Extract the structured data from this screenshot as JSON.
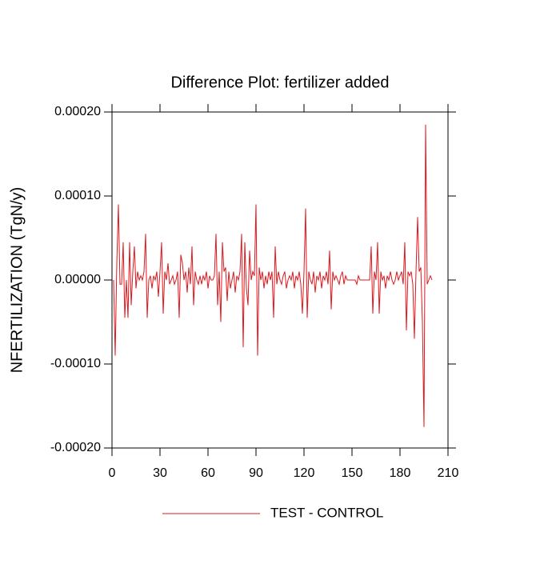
{
  "chart_data": {
    "type": "line",
    "title": "Difference Plot: fertilizer added",
    "ylabel": "NFERTILIZATION  (TgN/y)",
    "xlim": [
      0,
      210
    ],
    "xticks": [
      0,
      30,
      60,
      90,
      120,
      150,
      180,
      210
    ],
    "ylim": [
      -0.0002,
      0.0002
    ],
    "yticks": [
      {
        "value": -0.0002,
        "label": "-0.00020"
      },
      {
        "value": -0.0001,
        "label": "-0.00010"
      },
      {
        "value": 0,
        "label": "0.00000"
      },
      {
        "value": 0.0001,
        "label": "0.00010"
      },
      {
        "value": 0.0002,
        "label": "0.00020"
      }
    ],
    "legend": "bottom",
    "x": [
      1,
      2,
      3,
      4,
      5,
      6,
      7,
      8,
      9,
      10,
      11,
      12,
      13,
      14,
      15,
      16,
      17,
      18,
      19,
      20,
      21,
      22,
      23,
      24,
      25,
      26,
      27,
      28,
      29,
      30,
      31,
      32,
      33,
      34,
      35,
      36,
      37,
      38,
      39,
      40,
      41,
      42,
      43,
      44,
      45,
      46,
      47,
      48,
      49,
      50,
      51,
      52,
      53,
      54,
      55,
      56,
      57,
      58,
      59,
      60,
      61,
      62,
      63,
      64,
      65,
      66,
      67,
      68,
      69,
      70,
      71,
      72,
      73,
      74,
      75,
      76,
      77,
      78,
      79,
      80,
      81,
      82,
      83,
      84,
      85,
      86,
      87,
      88,
      89,
      90,
      91,
      92,
      93,
      94,
      95,
      96,
      97,
      98,
      99,
      100,
      101,
      102,
      103,
      104,
      105,
      106,
      107,
      108,
      109,
      110,
      111,
      112,
      113,
      114,
      115,
      116,
      117,
      118,
      119,
      120,
      121,
      122,
      123,
      124,
      125,
      126,
      127,
      128,
      129,
      130,
      131,
      132,
      133,
      134,
      135,
      136,
      137,
      138,
      139,
      140,
      141,
      142,
      143,
      144,
      145,
      146,
      147,
      148,
      149,
      150,
      151,
      152,
      153,
      154,
      155,
      156,
      157,
      158,
      159,
      160,
      161,
      162,
      163,
      164,
      165,
      166,
      167,
      168,
      169,
      170,
      171,
      172,
      173,
      174,
      175,
      176,
      177,
      178,
      179,
      180,
      181,
      182,
      183,
      184,
      185,
      186,
      187,
      188,
      189,
      190,
      191,
      192,
      193,
      194,
      195,
      196,
      197,
      198,
      199,
      200
    ],
    "series": [
      {
        "name": "TEST - CONTROL",
        "color": "#e0161b",
        "values": [
          0,
          -9e-05,
          2e-05,
          9e-05,
          -5e-06,
          -5e-06,
          4.5e-05,
          -4.5e-05,
          0,
          -4.5e-05,
          4.5e-05,
          -3e-05,
          1e-05,
          4e-05,
          -1e-05,
          1e-05,
          0,
          5e-06,
          0,
          1e-05,
          5.5e-05,
          -4.5e-05,
          0,
          5e-06,
          -1e-05,
          5e-06,
          0,
          1e-05,
          -2e-05,
          1e-05,
          4.5e-05,
          -4e-05,
          1e-05,
          0,
          2e-05,
          -5e-06,
          0,
          5e-06,
          -5e-06,
          0,
          1e-05,
          -4.5e-05,
          3e-05,
          2e-05,
          0,
          1e-05,
          -1.5e-05,
          1.5e-05,
          -5e-06,
          4e-05,
          -3e-05,
          1e-05,
          0,
          -5e-06,
          5e-06,
          -5e-06,
          5e-06,
          0,
          1e-05,
          -1e-05,
          5e-06,
          0,
          0,
          5e-06,
          5.5e-05,
          -3e-05,
          1e-05,
          -5e-05,
          4.5e-05,
          1e-05,
          1.5e-05,
          -2.5e-05,
          1e-05,
          -1e-05,
          0,
          1e-05,
          -1.5e-05,
          5e-06,
          0,
          1e-05,
          5.5e-05,
          -8e-05,
          4.5e-05,
          -1e-05,
          -3e-05,
          3.5e-05,
          0,
          1e-05,
          5e-06,
          9e-05,
          -9e-05,
          1.5e-05,
          0,
          1e-05,
          -1e-05,
          5e-06,
          -5e-06,
          1e-05,
          0,
          1e-05,
          -4.5e-05,
          4e-05,
          -5e-06,
          1e-05,
          0,
          -5e-06,
          5e-06,
          1e-05,
          -1e-05,
          0,
          5e-06,
          0,
          1e-05,
          -1e-05,
          5e-06,
          0,
          1e-05,
          -5e-06,
          -4e-05,
          1e-05,
          8.5e-05,
          -4.5e-05,
          1e-05,
          0,
          -5e-06,
          1e-05,
          -1.5e-05,
          5e-06,
          0,
          1e-05,
          -1e-05,
          5e-06,
          0,
          1e-05,
          -5e-06,
          3.5e-05,
          -3.5e-05,
          1e-05,
          0,
          5e-06,
          0,
          -5e-06,
          5e-06,
          1e-05,
          -5e-06,
          5e-06,
          0,
          0,
          0,
          0,
          0,
          0,
          -5e-06,
          5e-06,
          0,
          0,
          0,
          0,
          0,
          0,
          0,
          4e-05,
          -4e-05,
          1e-05,
          0,
          4.5e-05,
          -4e-05,
          1e-05,
          0,
          5e-06,
          -1e-05,
          5e-06,
          0,
          1e-05,
          0,
          -5e-06,
          0,
          1e-05,
          0,
          5e-06,
          1e-05,
          -5e-06,
          4.5e-05,
          -6e-05,
          1e-05,
          5e-06,
          1e-05,
          -5e-06,
          -7e-05,
          1e-05,
          7.5e-05,
          1e-05,
          1.5e-05,
          -5e-05,
          -0.000175,
          0.000185,
          -5e-06,
          0,
          5e-06,
          0
        ]
      }
    ]
  }
}
